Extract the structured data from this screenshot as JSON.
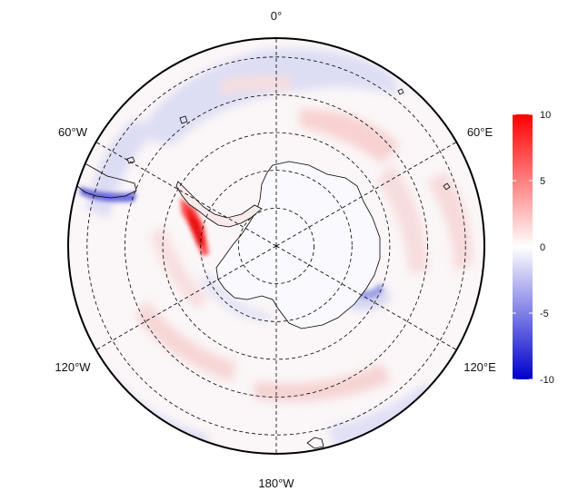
{
  "map": {
    "projection": "south-polar-stereographic",
    "longitude_labels": {
      "top": "0°",
      "upper_left": "60°W",
      "upper_right": "60°E",
      "lower_left": "120°W",
      "lower_right": "120°E",
      "bottom": "180°W"
    },
    "graticule": {
      "latitude_circles_count": 5,
      "meridians_deg": [
        0,
        60,
        120,
        180,
        240,
        300
      ],
      "style": "dashed"
    },
    "coastline_color": "#000000",
    "field_colors": {
      "low": "#0000cc",
      "mid": "#ffffff",
      "high": "#ff0000"
    }
  },
  "colorbar": {
    "min": -10,
    "max": 10,
    "ticks": [
      "10",
      "5",
      "0",
      "-5",
      "-10"
    ]
  }
}
